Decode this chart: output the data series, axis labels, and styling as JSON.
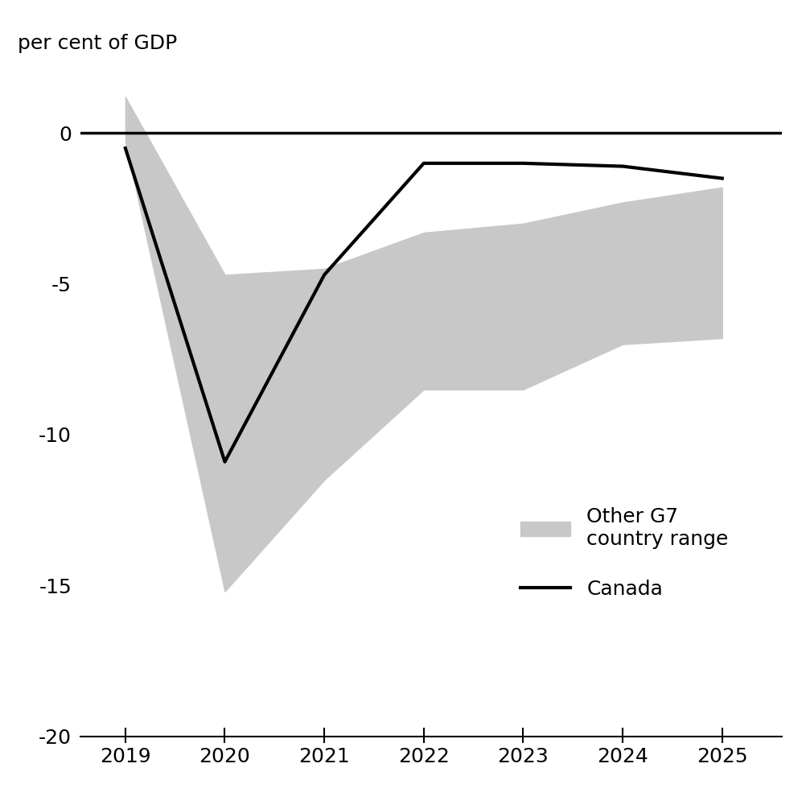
{
  "years": [
    2019,
    2020,
    2021,
    2022,
    2023,
    2024,
    2025
  ],
  "canada": [
    -0.5,
    -10.9,
    -4.7,
    -1.0,
    -1.0,
    -1.1,
    -1.5
  ],
  "g7_upper": [
    1.2,
    -4.7,
    -4.5,
    -3.3,
    -3.0,
    -2.3,
    -1.8
  ],
  "g7_lower": [
    -0.3,
    -15.2,
    -11.5,
    -8.5,
    -8.5,
    -7.0,
    -6.8
  ],
  "ylim": [
    -20,
    2
  ],
  "yticks": [
    0,
    -5,
    -10,
    -15,
    -20
  ],
  "ylabel": "per cent of GDP",
  "shade_color": "#c8c8c8",
  "canada_color": "#000000",
  "canada_linewidth": 3.0,
  "legend_shade_label": "Other G7\ncountry range",
  "legend_canada_label": "Canada",
  "background_color": "#ffffff",
  "tick_fontsize": 18,
  "ylabel_fontsize": 18
}
